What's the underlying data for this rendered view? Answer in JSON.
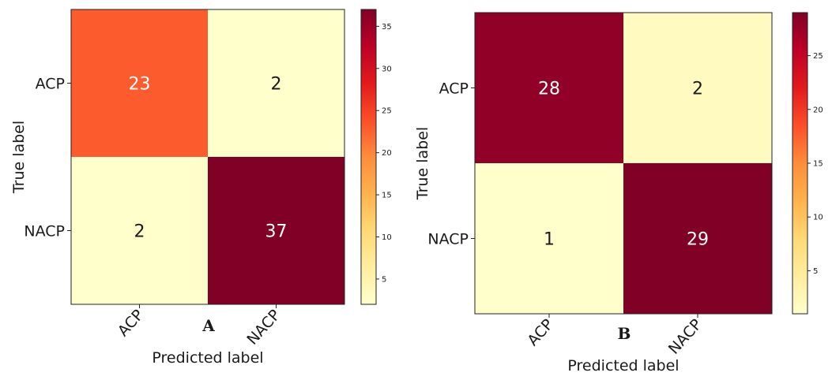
{
  "chart_data": [
    {
      "type": "heatmap",
      "panel_label": "A",
      "xlabel": "Predicted label",
      "ylabel": "True label",
      "x_tick_labels": [
        "ACP",
        "NACP"
      ],
      "y_tick_labels": [
        "ACP",
        "NACP"
      ],
      "values": [
        [
          23,
          2
        ],
        [
          2,
          37
        ]
      ],
      "cell_labels": [
        [
          "23",
          "2"
        ],
        [
          "2",
          "37"
        ]
      ],
      "colorbar": {
        "min": 2,
        "max": 37,
        "ticks": [
          5,
          10,
          15,
          20,
          25,
          30,
          35
        ],
        "tick_labels": [
          "5",
          "10",
          "15",
          "20",
          "25",
          "30",
          "35"
        ]
      },
      "colormap": "YlOrRd"
    },
    {
      "type": "heatmap",
      "panel_label": "B",
      "xlabel": "Predicted label",
      "ylabel": "True label",
      "x_tick_labels": [
        "ACP",
        "NACP"
      ],
      "y_tick_labels": [
        "ACP",
        "NACP"
      ],
      "values": [
        [
          28,
          2
        ],
        [
          1,
          29
        ]
      ],
      "cell_labels": [
        [
          "28",
          "2"
        ],
        [
          "1",
          "29"
        ]
      ],
      "colorbar": {
        "min": 1,
        "max": 29,
        "ticks": [
          5,
          10,
          15,
          20,
          25
        ],
        "tick_labels": [
          "5",
          "10",
          "15",
          "20",
          "25"
        ]
      },
      "colormap": "YlOrRd"
    }
  ]
}
